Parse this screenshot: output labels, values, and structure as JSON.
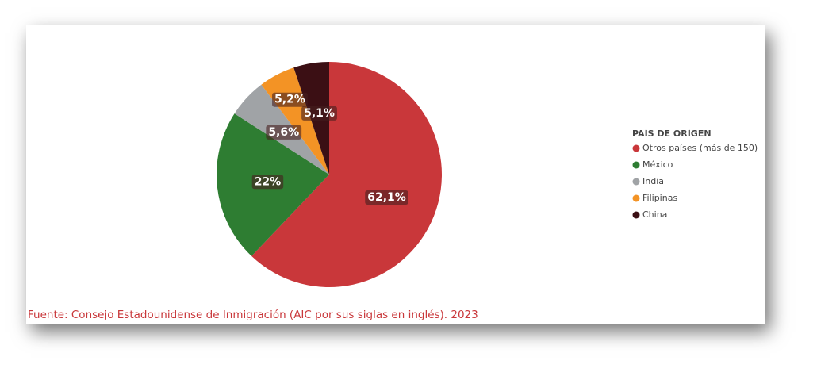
{
  "chart_data": {
    "type": "pie",
    "categories": [
      "Otros países (más de 150)",
      "México",
      "India",
      "Filipinas",
      "China"
    ],
    "values": [
      62.1,
      22,
      5.6,
      5.2,
      5.1
    ],
    "value_labels": [
      "62,1%",
      "22%",
      "5,6%",
      "5,2%",
      "5,1%"
    ],
    "colors": [
      "#c9373a",
      "#2e7d32",
      "#a0a3a6",
      "#f39325",
      "#3b0f14"
    ],
    "legend_title": "PAÍS DE ORÍGEN",
    "legend_position": "right",
    "source": "Fuente: Consejo Estadounidense de Inmigración (AIC por sus siglas en inglés). 2023"
  }
}
